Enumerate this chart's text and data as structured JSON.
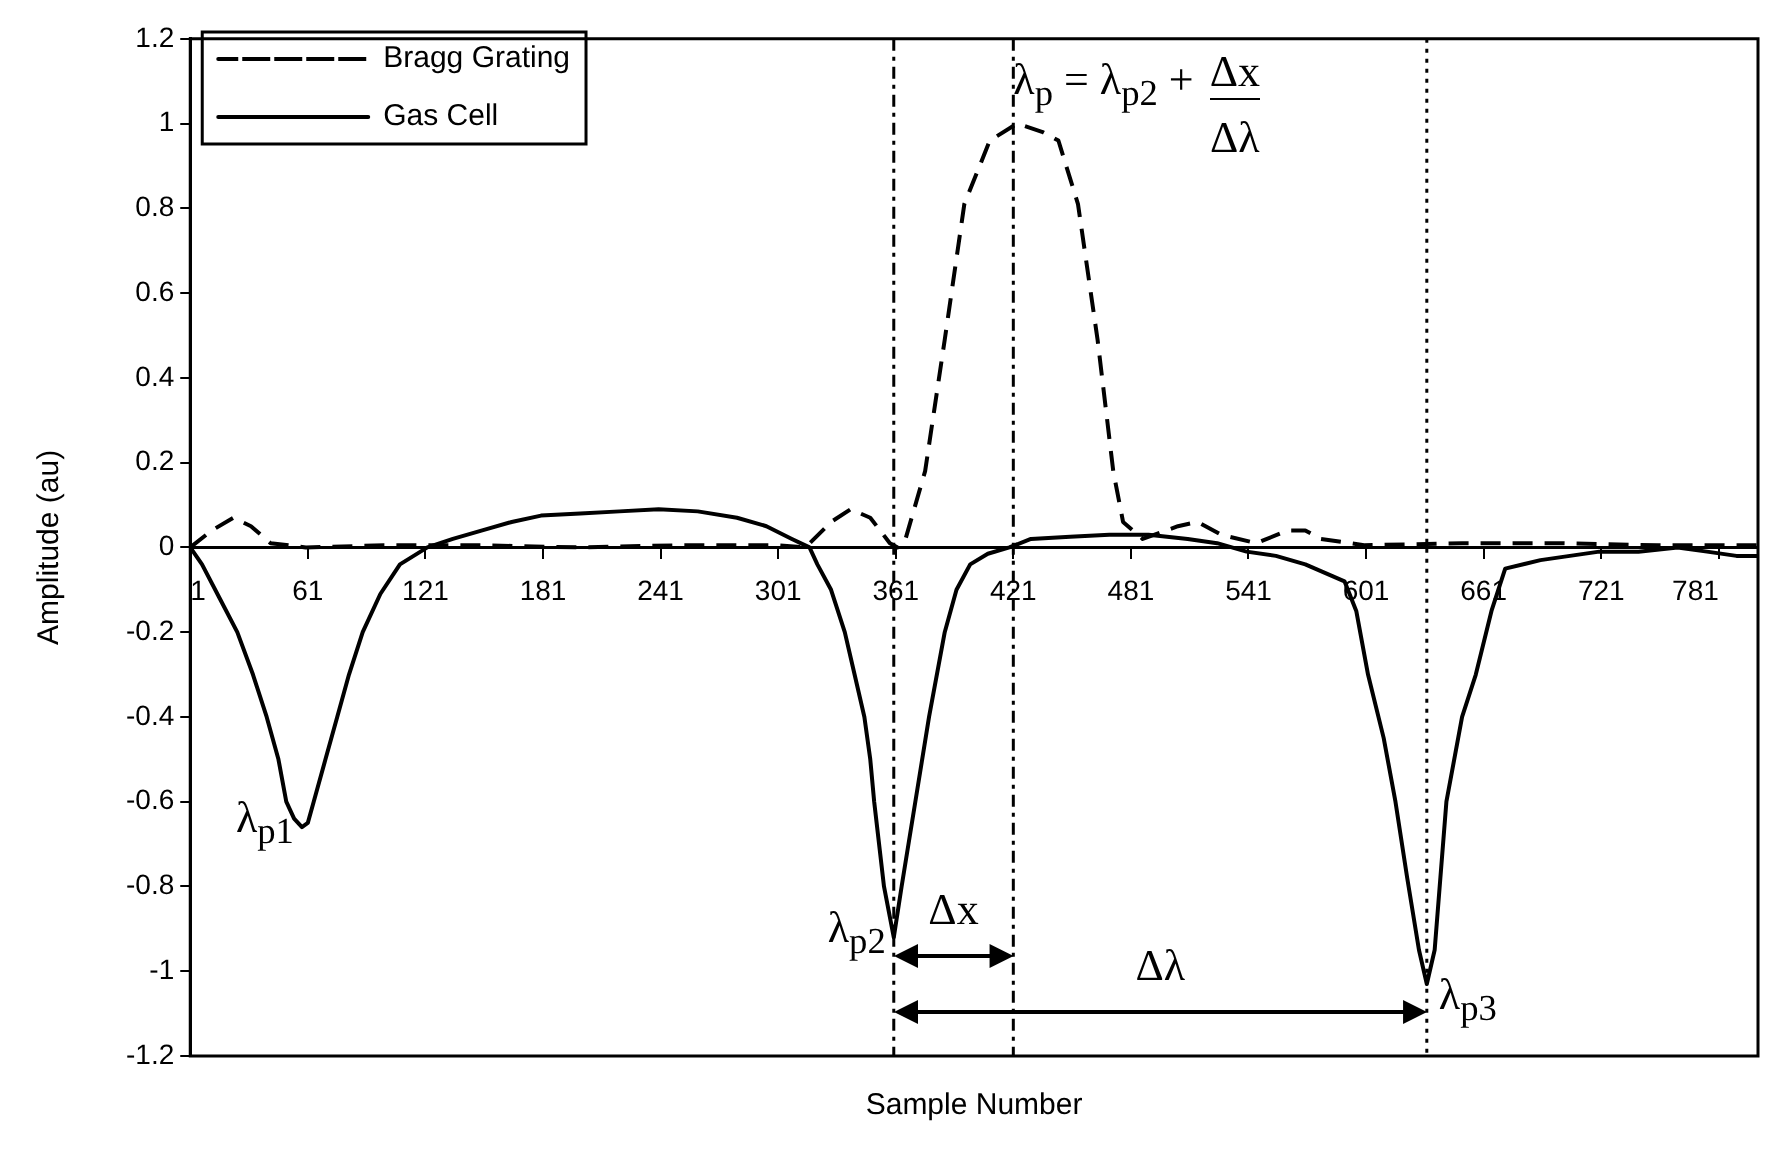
{
  "chart_data": {
    "type": "line",
    "xlabel": "Sample Number",
    "ylabel": "Amplitude (au)",
    "xlim": [
      1,
      801
    ],
    "ylim": [
      -1.2,
      1.2
    ],
    "xticks": [
      1,
      61,
      121,
      181,
      241,
      301,
      361,
      421,
      481,
      541,
      601,
      661,
      721,
      781
    ],
    "yticks": [
      -1.2,
      -1,
      -0.8,
      -0.6,
      -0.4,
      -0.2,
      0,
      0.2,
      0.4,
      0.6,
      0.8,
      1,
      1.2
    ],
    "grid": false,
    "legend": "top left",
    "marker": "none",
    "series": [
      {
        "name": "Bragg Grating",
        "color": "#000000",
        "line_style": "dashed",
        "x": [
          1,
          12,
          23,
          32,
          42,
          60,
          100,
          150,
          200,
          250,
          300,
          315,
          328,
          338,
          348,
          358,
          362,
          366,
          376,
          386,
          396,
          409,
          423,
          436,
          444,
          454,
          464,
          472,
          477,
          487,
          505,
          515,
          527,
          545,
          561,
          570,
          578,
          600,
          650,
          700,
          750,
          801
        ],
        "values": [
          0,
          0.04,
          0.07,
          0.05,
          0.01,
          0,
          0.005,
          0.005,
          0,
          0.005,
          0.005,
          0,
          0.06,
          0.09,
          0.07,
          0.01,
          0,
          0.02,
          0.18,
          0.49,
          0.81,
          0.96,
          1,
          0.98,
          0.96,
          0.81,
          0.49,
          0.18,
          0.06,
          0.02,
          0.05,
          0.06,
          0.03,
          0.01,
          0.04,
          0.04,
          0.02,
          0.005,
          0.01,
          0.01,
          0.005,
          0.005
        ]
      },
      {
        "name": "Gas Cell",
        "color": "#000000",
        "line_style": "solid",
        "x": [
          1,
          7,
          16,
          25,
          33,
          40,
          46,
          50,
          54,
          58,
          61,
          64,
          70,
          76,
          82,
          89,
          98,
          108,
          115,
          122,
          135,
          150,
          165,
          180,
          200,
          220,
          240,
          260,
          280,
          295,
          308,
          317,
          321,
          328,
          335,
          340,
          345,
          348,
          350,
          355,
          360,
          364,
          371,
          378,
          386,
          392,
          399,
          408,
          419,
          430,
          450,
          470,
          490,
          510,
          525,
          540,
          555,
          570,
          580,
          590,
          596,
          602,
          610,
          616,
          622,
          628,
          632,
          636,
          642,
          650,
          657,
          665,
          672,
          690,
          705,
          720,
          740,
          760,
          775,
          790,
          801
        ],
        "values": [
          0,
          -0.04,
          -0.12,
          -0.2,
          -0.3,
          -0.4,
          -0.5,
          -0.6,
          -0.64,
          -0.66,
          -0.65,
          -0.6,
          -0.5,
          -0.4,
          -0.3,
          -0.2,
          -0.11,
          -0.04,
          -0.02,
          0,
          0.02,
          0.04,
          0.06,
          0.075,
          0.08,
          0.085,
          0.09,
          0.085,
          0.07,
          0.05,
          0.02,
          0,
          -0.04,
          -0.1,
          -0.2,
          -0.3,
          -0.4,
          -0.5,
          -0.6,
          -0.8,
          -0.92,
          -0.8,
          -0.6,
          -0.4,
          -0.2,
          -0.1,
          -0.04,
          -0.015,
          0,
          0.02,
          0.025,
          0.03,
          0.03,
          0.02,
          0.01,
          -0.01,
          -0.02,
          -0.04,
          -0.06,
          -0.08,
          -0.15,
          -0.3,
          -0.45,
          -0.6,
          -0.78,
          -0.95,
          -1.03,
          -0.95,
          -0.6,
          -0.4,
          -0.3,
          -0.15,
          -0.05,
          -0.03,
          -0.02,
          -0.01,
          -0.01,
          0,
          -0.01,
          -0.02,
          -0.02
        ]
      }
    ],
    "ref_lines": [
      {
        "axis": "x",
        "value": 360,
        "line_style": "dashed"
      },
      {
        "axis": "x",
        "value": 421,
        "line_style": "dashed"
      },
      {
        "axis": "x",
        "value": 632,
        "line_style": "dotted"
      }
    ],
    "annotations": [
      {
        "text": "λ$_{p}$ = λ$_{p2}$ +",
        "x": 421,
        "y": 1.1
      },
      "Δx",
      "Δλ",
      "Δx",
      "Δλ",
      {
        "text": "λ$_{p1}$",
        "x": 58,
        "y": -0.66
      },
      {
        "text": "λ$_{p2}$",
        "x": 360,
        "y": -0.92
      },
      {
        "text": "λ$_{p3}$",
        "x": 632,
        "y": -1.03
      }
    ]
  }
}
